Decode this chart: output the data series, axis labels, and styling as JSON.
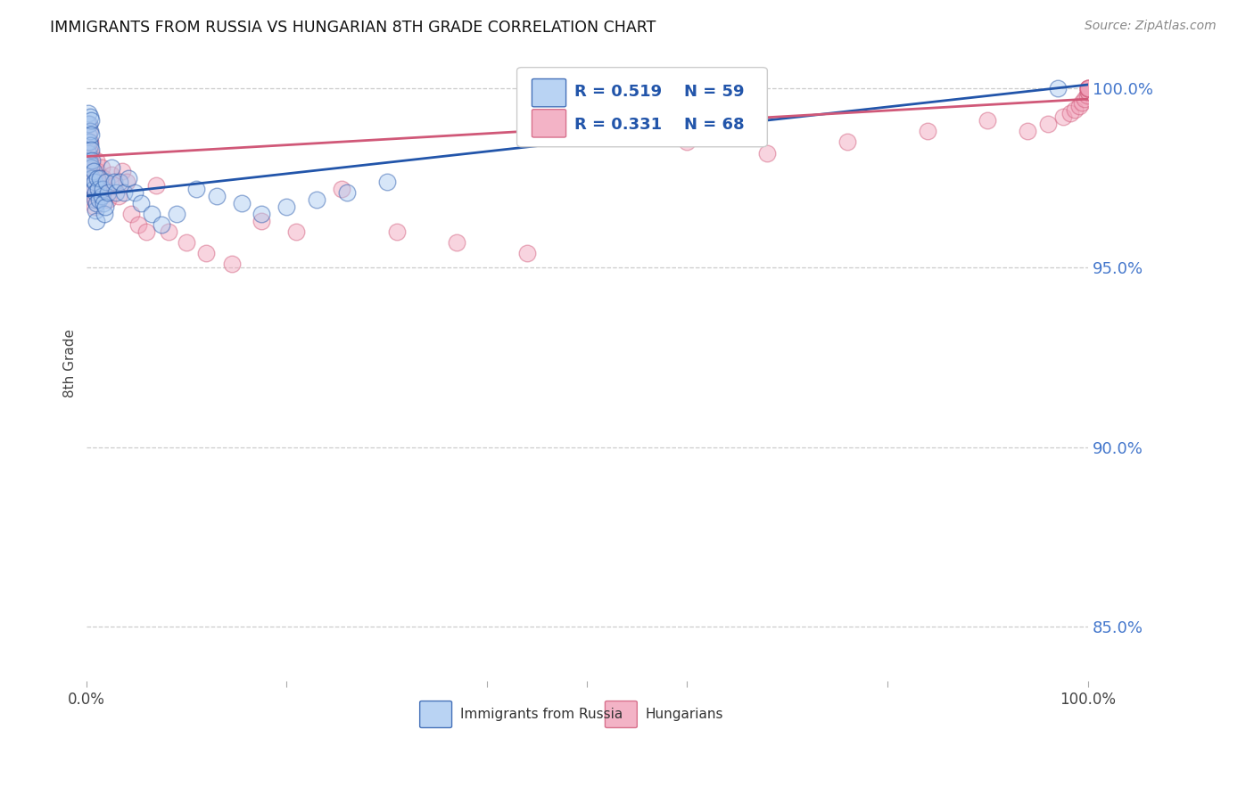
{
  "title": "IMMIGRANTS FROM RUSSIA VS HUNGARIAN 8TH GRADE CORRELATION CHART",
  "source": "Source: ZipAtlas.com",
  "ylabel": "8th Grade",
  "ytick_labels": [
    "100.0%",
    "95.0%",
    "90.0%",
    "85.0%"
  ],
  "ytick_values": [
    1.0,
    0.95,
    0.9,
    0.85
  ],
  "legend_label1": "Immigrants from Russia",
  "legend_label2": "Hungarians",
  "legend_r1": "R = 0.519",
  "legend_n1": "N = 59",
  "legend_r2": "R = 0.331",
  "legend_n2": "N = 68",
  "color_blue": "#A8C8F0",
  "color_pink": "#F0A0B8",
  "color_blue_line": "#2255AA",
  "color_pink_line": "#D05878",
  "color_right_labels": "#4477CC",
  "color_legend_text": "#2255AA",
  "background": "#FFFFFF",
  "blue_x": [
    0.001,
    0.001,
    0.002,
    0.002,
    0.002,
    0.003,
    0.003,
    0.003,
    0.003,
    0.004,
    0.004,
    0.004,
    0.004,
    0.005,
    0.005,
    0.005,
    0.005,
    0.005,
    0.006,
    0.006,
    0.007,
    0.007,
    0.008,
    0.008,
    0.009,
    0.009,
    0.01,
    0.01,
    0.011,
    0.012,
    0.013,
    0.014,
    0.015,
    0.016,
    0.017,
    0.018,
    0.019,
    0.02,
    0.022,
    0.025,
    0.028,
    0.03,
    0.033,
    0.038,
    0.042,
    0.048,
    0.055,
    0.065,
    0.075,
    0.09,
    0.11,
    0.13,
    0.155,
    0.175,
    0.2,
    0.23,
    0.26,
    0.3,
    0.97
  ],
  "blue_y": [
    0.99,
    0.985,
    0.993,
    0.987,
    0.982,
    0.99,
    0.985,
    0.98,
    0.975,
    0.992,
    0.988,
    0.984,
    0.979,
    0.991,
    0.987,
    0.983,
    0.978,
    0.973,
    0.98,
    0.975,
    0.977,
    0.972,
    0.974,
    0.969,
    0.971,
    0.966,
    0.968,
    0.963,
    0.975,
    0.972,
    0.969,
    0.975,
    0.97,
    0.972,
    0.968,
    0.965,
    0.967,
    0.974,
    0.971,
    0.978,
    0.974,
    0.971,
    0.974,
    0.971,
    0.975,
    0.971,
    0.968,
    0.965,
    0.962,
    0.965,
    0.972,
    0.97,
    0.968,
    0.965,
    0.967,
    0.969,
    0.971,
    0.974,
    1.0
  ],
  "pink_x": [
    0.001,
    0.001,
    0.002,
    0.002,
    0.003,
    0.003,
    0.003,
    0.004,
    0.004,
    0.004,
    0.005,
    0.005,
    0.005,
    0.006,
    0.006,
    0.007,
    0.007,
    0.008,
    0.008,
    0.009,
    0.01,
    0.011,
    0.012,
    0.013,
    0.015,
    0.017,
    0.019,
    0.022,
    0.025,
    0.028,
    0.032,
    0.036,
    0.04,
    0.045,
    0.052,
    0.06,
    0.07,
    0.082,
    0.1,
    0.12,
    0.145,
    0.175,
    0.21,
    0.255,
    0.31,
    0.37,
    0.44,
    0.52,
    0.6,
    0.68,
    0.76,
    0.84,
    0.9,
    0.94,
    0.96,
    0.975,
    0.982,
    0.987,
    0.991,
    0.994,
    0.997,
    0.999,
    1.0,
    1.0,
    1.0,
    1.0,
    1.0,
    1.0
  ],
  "pink_y": [
    0.985,
    0.98,
    0.99,
    0.982,
    0.988,
    0.983,
    0.978,
    0.985,
    0.98,
    0.975,
    0.982,
    0.977,
    0.972,
    0.978,
    0.973,
    0.975,
    0.97,
    0.972,
    0.967,
    0.969,
    0.98,
    0.977,
    0.974,
    0.971,
    0.978,
    0.975,
    0.972,
    0.969,
    0.976,
    0.973,
    0.97,
    0.977,
    0.974,
    0.965,
    0.962,
    0.96,
    0.973,
    0.96,
    0.957,
    0.954,
    0.951,
    0.963,
    0.96,
    0.972,
    0.96,
    0.957,
    0.954,
    0.988,
    0.985,
    0.982,
    0.985,
    0.988,
    0.991,
    0.988,
    0.99,
    0.992,
    0.993,
    0.994,
    0.995,
    0.996,
    0.997,
    0.998,
    0.999,
    0.999,
    1.0,
    1.0,
    1.0,
    1.0
  ],
  "xlim": [
    0.0,
    1.0
  ],
  "ylim": [
    0.835,
    1.012
  ],
  "trend_blue_start_y": 0.97,
  "trend_blue_end_y": 1.001,
  "trend_pink_start_y": 0.981,
  "trend_pink_end_y": 0.997
}
